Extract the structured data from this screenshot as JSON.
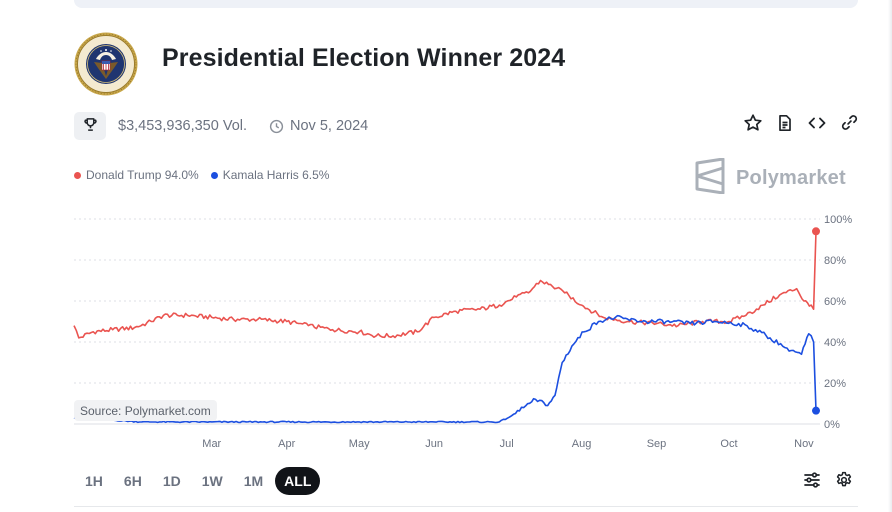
{
  "header": {
    "title": "Presidential Election Winner 2024"
  },
  "meta": {
    "volume": "$3,453,936,350 Vol.",
    "date": "Nov 5, 2024"
  },
  "legend": {
    "trump": "Donald Trump 94.0%",
    "harris": "Kamala Harris 6.5%"
  },
  "brand": {
    "name": "Polymarket"
  },
  "source": "Source: Polymarket.com",
  "ranges": [
    "1H",
    "6H",
    "1D",
    "1W",
    "1M",
    "ALL"
  ],
  "active_range": "ALL",
  "colors": {
    "trump": "#ea5450",
    "harris": "#1c4fe0",
    "grid": "#dcdfe4",
    "axis_text": "#6b7280"
  },
  "icons": [
    "trophy-icon",
    "clock-icon",
    "star-icon",
    "document-icon",
    "embed-icon",
    "link-icon",
    "sliders-icon",
    "gear-icon",
    "polymarket-logo-icon"
  ],
  "chart_data": {
    "type": "line",
    "title": "",
    "xlabel": "",
    "ylabel": "",
    "ylim": [
      0,
      100
    ],
    "yticks": [
      "0%",
      "20%",
      "40%",
      "60%",
      "80%",
      "100%"
    ],
    "xtick_labels": [
      "Mar",
      "Apr",
      "May",
      "Jun",
      "Jul",
      "Aug",
      "Sep",
      "Oct",
      "Nov"
    ],
    "x_range": [
      "2024-01-04",
      "2024-11-06"
    ],
    "grid": true,
    "series": [
      {
        "name": "Donald Trump",
        "color": "#ea5450",
        "points": [
          [
            "2024-01-04",
            48
          ],
          [
            "2024-01-06",
            42
          ],
          [
            "2024-01-12",
            45
          ],
          [
            "2024-01-20",
            46
          ],
          [
            "2024-01-29",
            47
          ],
          [
            "2024-02-05",
            50
          ],
          [
            "2024-02-10",
            53
          ],
          [
            "2024-02-20",
            53
          ],
          [
            "2024-03-01",
            52
          ],
          [
            "2024-03-10",
            51
          ],
          [
            "2024-03-20",
            51
          ],
          [
            "2024-04-01",
            50
          ],
          [
            "2024-04-10",
            48
          ],
          [
            "2024-04-20",
            46
          ],
          [
            "2024-05-01",
            45
          ],
          [
            "2024-05-08",
            43
          ],
          [
            "2024-05-15",
            43
          ],
          [
            "2024-05-25",
            45
          ],
          [
            "2024-06-01",
            52
          ],
          [
            "2024-06-10",
            55
          ],
          [
            "2024-06-20",
            56
          ],
          [
            "2024-06-28",
            58
          ],
          [
            "2024-07-05",
            62
          ],
          [
            "2024-07-10",
            64
          ],
          [
            "2024-07-15",
            70
          ],
          [
            "2024-07-20",
            67
          ],
          [
            "2024-07-25",
            64
          ],
          [
            "2024-08-01",
            58
          ],
          [
            "2024-08-10",
            52
          ],
          [
            "2024-08-20",
            50
          ],
          [
            "2024-09-01",
            49
          ],
          [
            "2024-09-10",
            48
          ],
          [
            "2024-09-20",
            50
          ],
          [
            "2024-10-01",
            50
          ],
          [
            "2024-10-08",
            53
          ],
          [
            "2024-10-15",
            58
          ],
          [
            "2024-10-22",
            63
          ],
          [
            "2024-10-29",
            66
          ],
          [
            "2024-11-01",
            60
          ],
          [
            "2024-11-04",
            58
          ],
          [
            "2024-11-05",
            56
          ],
          [
            "2024-11-06",
            94
          ]
        ]
      },
      {
        "name": "Kamala Harris",
        "color": "#1c4fe0",
        "points": [
          [
            "2024-01-04",
            3
          ],
          [
            "2024-02-01",
            1
          ],
          [
            "2024-03-01",
            1
          ],
          [
            "2024-04-01",
            1
          ],
          [
            "2024-05-01",
            1
          ],
          [
            "2024-06-01",
            1
          ],
          [
            "2024-06-28",
            1
          ],
          [
            "2024-07-03",
            4
          ],
          [
            "2024-07-08",
            8
          ],
          [
            "2024-07-13",
            12
          ],
          [
            "2024-07-18",
            9
          ],
          [
            "2024-07-21",
            14
          ],
          [
            "2024-07-24",
            30
          ],
          [
            "2024-07-28",
            38
          ],
          [
            "2024-08-02",
            45
          ],
          [
            "2024-08-08",
            50
          ],
          [
            "2024-08-15",
            52
          ],
          [
            "2024-08-25",
            50
          ],
          [
            "2024-09-05",
            50
          ],
          [
            "2024-09-15",
            49
          ],
          [
            "2024-09-25",
            50
          ],
          [
            "2024-10-05",
            49
          ],
          [
            "2024-10-12",
            46
          ],
          [
            "2024-10-18",
            42
          ],
          [
            "2024-10-25",
            37
          ],
          [
            "2024-10-31",
            34
          ],
          [
            "2024-11-03",
            44
          ],
          [
            "2024-11-05",
            40
          ],
          [
            "2024-11-06",
            6.5
          ]
        ]
      }
    ]
  }
}
